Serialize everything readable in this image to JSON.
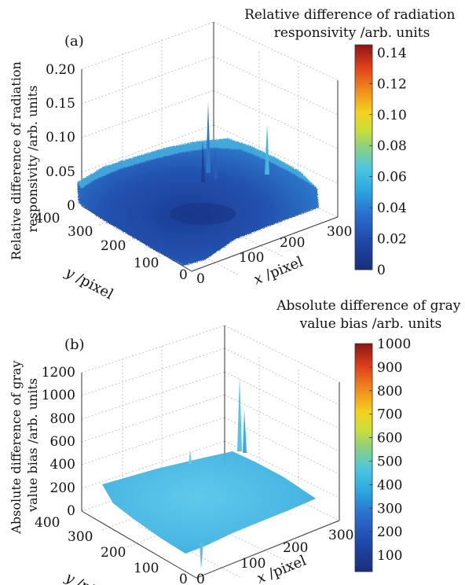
{
  "chart_data": [
    {
      "type": "surface",
      "panel_label": "(a)",
      "zlabel_line1": "Relative difference of radiation",
      "zlabel_line2": "responsivity /arb. units",
      "x_ticks": [
        "0",
        "100",
        "200",
        "300"
      ],
      "y_ticks": [
        "0",
        "100",
        "200",
        "300",
        "400"
      ],
      "z_ticks": [
        "0",
        "0.05",
        "0.10",
        "0.15",
        "0.20"
      ],
      "x_axis_var": "x",
      "x_axis_unit": " /pixel",
      "y_axis_var": "y",
      "y_axis_unit": " /pixel",
      "xlim": [
        0,
        320
      ],
      "ylim": [
        0,
        420
      ],
      "zlim": [
        0,
        0.2
      ],
      "surface_summary": {
        "base_center": 0.015,
        "edge_level": 0.045,
        "spikes": [
          {
            "x": 130,
            "y": 250,
            "z": 0.16
          },
          {
            "x": 140,
            "y": 230,
            "z": 0.12
          },
          {
            "x": 160,
            "y": 215,
            "z": 0.11
          },
          {
            "x": 245,
            "y": 245,
            "z": 0.13
          }
        ]
      },
      "colorbar": {
        "title_line1": "Relative difference of radiation",
        "title_line2": "responsivity /arb. units",
        "range": [
          0,
          0.145
        ],
        "ticks": [
          "0",
          "0.02",
          "0.04",
          "0.06",
          "0.08",
          "0.10",
          "0.12",
          "0.14"
        ],
        "colormap": "jet"
      }
    },
    {
      "type": "surface",
      "panel_label": "(b)",
      "zlabel_line1": "Absolute difference of gray",
      "zlabel_line2": "value bias /arb. units",
      "x_ticks": [
        "0",
        "100",
        "200",
        "300"
      ],
      "y_ticks": [
        "0",
        "100",
        "200",
        "300",
        "400"
      ],
      "z_ticks": [
        "0",
        "200",
        "400",
        "600",
        "800",
        "1000",
        "1200"
      ],
      "x_axis_var": "x",
      "x_axis_unit": " /pixel",
      "y_axis_var": "y",
      "y_axis_unit": " /pixel",
      "xlim": [
        0,
        320
      ],
      "ylim": [
        0,
        420
      ],
      "zlim": [
        0,
        1200
      ],
      "surface_summary": {
        "base_center": 280,
        "edge_level": 240,
        "spikes": [
          {
            "x": 250,
            "y": 300,
            "z": 1050
          },
          {
            "x": 255,
            "y": 290,
            "z": 900
          },
          {
            "x": 60,
            "y": 330,
            "z": 420
          },
          {
            "x": 70,
            "y": 140,
            "z": 380
          }
        ]
      },
      "colorbar": {
        "title_line1": "Absolute difference of gray",
        "title_line2": "value bias /arb. units",
        "range": [
          30,
          1000
        ],
        "ticks": [
          "100",
          "200",
          "300",
          "400",
          "500",
          "600",
          "700",
          "800",
          "900",
          "1000"
        ],
        "colormap": "jet"
      }
    }
  ]
}
